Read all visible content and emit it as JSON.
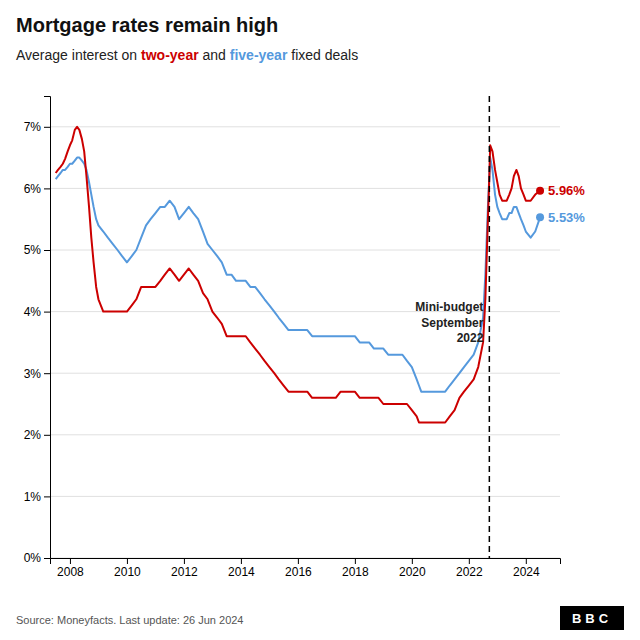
{
  "chart_data": {
    "type": "line",
    "title": "Mortgage rates remain high",
    "subtitle": "Average interest on two-year and five-year fixed deals",
    "annotations": [
      {
        "text": "Mini-budget\nSeptember\n2022",
        "x": 2022.72
      },
      {
        "text": "Source: Moneyfacts. Last update: 26 Jun 2024"
      },
      {
        "text": "BBC"
      }
    ],
    "xlim": [
      2007.3,
      2025.2
    ],
    "xticks": [
      2008,
      2010,
      2012,
      2014,
      2016,
      2018,
      2020,
      2022,
      2024
    ],
    "ylim": [
      0.0,
      0.075
    ],
    "yticks": [
      {
        "value": 0.0,
        "label": "0%"
      },
      {
        "value": 0.01,
        "label": "1%"
      },
      {
        "value": 0.02,
        "label": "2%"
      },
      {
        "value": 0.03,
        "label": "3%"
      },
      {
        "value": 0.04,
        "label": "4%"
      },
      {
        "value": 0.05,
        "label": "5%"
      },
      {
        "value": 0.06,
        "label": "6%"
      },
      {
        "value": 0.07,
        "label": "7%"
      }
    ],
    "grid": true,
    "x": [
      2007.5,
      2007.58,
      2007.67,
      2007.75,
      2007.83,
      2007.92,
      2008.0,
      2008.08,
      2008.17,
      2008.25,
      2008.33,
      2008.42,
      2008.5,
      2008.58,
      2008.67,
      2008.75,
      2008.83,
      2008.92,
      2009.0,
      2009.17,
      2009.33,
      2009.5,
      2009.67,
      2009.83,
      2010.0,
      2010.17,
      2010.33,
      2010.5,
      2010.67,
      2010.83,
      2011.0,
      2011.17,
      2011.33,
      2011.5,
      2011.67,
      2011.83,
      2012.0,
      2012.17,
      2012.33,
      2012.5,
      2012.67,
      2012.83,
      2013.0,
      2013.17,
      2013.33,
      2013.5,
      2013.67,
      2013.83,
      2014.0,
      2014.17,
      2014.33,
      2014.5,
      2014.67,
      2014.83,
      2015.0,
      2015.17,
      2015.33,
      2015.5,
      2015.67,
      2015.83,
      2016.0,
      2016.17,
      2016.33,
      2016.5,
      2016.67,
      2016.83,
      2017.0,
      2017.17,
      2017.33,
      2017.5,
      2017.67,
      2017.83,
      2018.0,
      2018.17,
      2018.33,
      2018.5,
      2018.67,
      2018.83,
      2019.0,
      2019.17,
      2019.33,
      2019.5,
      2019.67,
      2019.83,
      2020.0,
      2020.17,
      2020.25,
      2020.33,
      2020.5,
      2020.67,
      2020.83,
      2021.0,
      2021.17,
      2021.33,
      2021.5,
      2021.67,
      2021.83,
      2022.0,
      2022.17,
      2022.33,
      2022.5,
      2022.58,
      2022.67,
      2022.72,
      2022.75,
      2022.83,
      2022.92,
      2023.0,
      2023.08,
      2023.17,
      2023.25,
      2023.33,
      2023.42,
      2023.5,
      2023.58,
      2023.67,
      2023.75,
      2023.83,
      2023.92,
      2024.0,
      2024.17,
      2024.33,
      2024.5
    ],
    "series": [
      {
        "name": "five-year",
        "color": "#5599dd",
        "values": [
          0.0615,
          0.062,
          0.0625,
          0.063,
          0.063,
          0.0635,
          0.064,
          0.064,
          0.0645,
          0.065,
          0.065,
          0.0645,
          0.064,
          0.063,
          0.061,
          0.059,
          0.057,
          0.055,
          0.054,
          0.053,
          0.052,
          0.051,
          0.05,
          0.049,
          0.048,
          0.049,
          0.05,
          0.052,
          0.054,
          0.055,
          0.056,
          0.057,
          0.057,
          0.058,
          0.057,
          0.055,
          0.056,
          0.057,
          0.056,
          0.055,
          0.053,
          0.051,
          0.05,
          0.049,
          0.048,
          0.046,
          0.046,
          0.045,
          0.045,
          0.045,
          0.044,
          0.044,
          0.043,
          0.042,
          0.041,
          0.04,
          0.039,
          0.038,
          0.037,
          0.037,
          0.037,
          0.037,
          0.037,
          0.036,
          0.036,
          0.036,
          0.036,
          0.036,
          0.036,
          0.036,
          0.036,
          0.036,
          0.036,
          0.035,
          0.035,
          0.035,
          0.034,
          0.034,
          0.034,
          0.033,
          0.033,
          0.033,
          0.033,
          0.032,
          0.031,
          0.029,
          0.028,
          0.027,
          0.027,
          0.027,
          0.027,
          0.027,
          0.027,
          0.028,
          0.029,
          0.03,
          0.031,
          0.032,
          0.033,
          0.035,
          0.039,
          0.046,
          0.057,
          0.062,
          0.065,
          0.063,
          0.059,
          0.057,
          0.056,
          0.055,
          0.055,
          0.055,
          0.056,
          0.056,
          0.057,
          0.057,
          0.056,
          0.055,
          0.054,
          0.053,
          0.052,
          0.053,
          0.0553
        ],
        "value_labels": [
          null,
          null,
          null,
          null,
          null,
          null,
          null,
          null,
          null,
          null,
          null,
          null,
          null,
          null,
          null,
          null,
          null,
          null,
          null,
          null,
          null,
          null,
          null,
          null,
          null,
          null,
          null,
          null,
          null,
          null,
          null,
          null,
          null,
          null,
          null,
          null,
          null,
          null,
          null,
          null,
          null,
          null,
          null,
          null,
          null,
          null,
          null,
          null,
          null,
          null,
          null,
          null,
          null,
          null,
          null,
          null,
          null,
          null,
          null,
          null,
          null,
          null,
          null,
          null,
          null,
          null,
          null,
          null,
          null,
          null,
          null,
          null,
          null,
          null,
          null,
          null,
          null,
          null,
          null,
          null,
          null,
          null,
          null,
          null,
          null,
          null,
          null,
          null,
          null,
          null,
          null,
          null,
          null,
          null,
          null,
          null,
          null,
          null,
          null,
          null,
          null,
          null,
          null,
          null,
          null,
          null,
          null,
          null,
          null,
          null,
          null,
          null,
          null,
          null,
          null,
          null,
          null,
          null,
          null,
          null,
          null,
          null,
          "5.53%"
        ]
      },
      {
        "name": "two-year",
        "color": "#cc0000",
        "values": [
          0.0625,
          0.063,
          0.0635,
          0.064,
          0.0648,
          0.066,
          0.067,
          0.0678,
          0.0695,
          0.07,
          0.0695,
          0.068,
          0.066,
          0.062,
          0.057,
          0.052,
          0.048,
          0.044,
          0.042,
          0.04,
          0.04,
          0.04,
          0.04,
          0.04,
          0.04,
          0.041,
          0.042,
          0.044,
          0.044,
          0.044,
          0.044,
          0.045,
          0.046,
          0.047,
          0.046,
          0.045,
          0.046,
          0.047,
          0.046,
          0.045,
          0.043,
          0.042,
          0.04,
          0.039,
          0.038,
          0.036,
          0.036,
          0.036,
          0.036,
          0.036,
          0.035,
          0.034,
          0.033,
          0.032,
          0.031,
          0.03,
          0.029,
          0.028,
          0.027,
          0.027,
          0.027,
          0.027,
          0.027,
          0.026,
          0.026,
          0.026,
          0.026,
          0.026,
          0.026,
          0.027,
          0.027,
          0.027,
          0.027,
          0.026,
          0.026,
          0.026,
          0.026,
          0.026,
          0.025,
          0.025,
          0.025,
          0.025,
          0.025,
          0.025,
          0.024,
          0.023,
          0.022,
          0.022,
          0.022,
          0.022,
          0.022,
          0.022,
          0.022,
          0.023,
          0.024,
          0.026,
          0.027,
          0.028,
          0.029,
          0.031,
          0.035,
          0.042,
          0.055,
          0.062,
          0.067,
          0.066,
          0.063,
          0.061,
          0.059,
          0.058,
          0.058,
          0.058,
          0.059,
          0.06,
          0.062,
          0.063,
          0.062,
          0.06,
          0.059,
          0.058,
          0.058,
          0.059,
          0.0596
        ],
        "value_labels": [
          null,
          null,
          null,
          null,
          null,
          null,
          null,
          null,
          null,
          null,
          null,
          null,
          null,
          null,
          null,
          null,
          null,
          null,
          null,
          null,
          null,
          null,
          null,
          null,
          null,
          null,
          null,
          null,
          null,
          null,
          null,
          null,
          null,
          null,
          null,
          null,
          null,
          null,
          null,
          null,
          null,
          null,
          null,
          null,
          null,
          null,
          null,
          null,
          null,
          null,
          null,
          null,
          null,
          null,
          null,
          null,
          null,
          null,
          null,
          null,
          null,
          null,
          null,
          null,
          null,
          null,
          null,
          null,
          null,
          null,
          null,
          null,
          null,
          null,
          null,
          null,
          null,
          null,
          null,
          null,
          null,
          null,
          null,
          null,
          null,
          null,
          null,
          null,
          null,
          null,
          null,
          null,
          null,
          null,
          null,
          null,
          null,
          null,
          null,
          null,
          null,
          null,
          null,
          null,
          null,
          null,
          null,
          null,
          null,
          null,
          null,
          null,
          null,
          null,
          null,
          null,
          null,
          null,
          null,
          null,
          null,
          null,
          "5.96%"
        ]
      }
    ]
  }
}
